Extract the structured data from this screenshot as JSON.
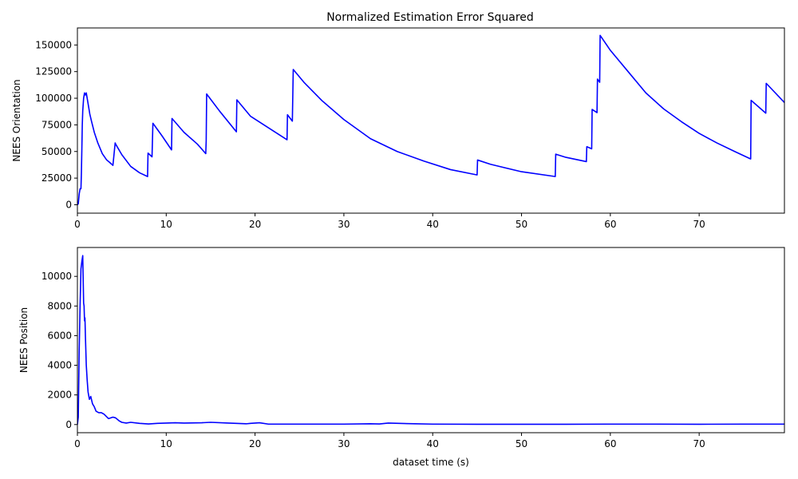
{
  "chart_data": [
    {
      "type": "line",
      "title": "Normalized Estimation Error Squared",
      "xlabel": "",
      "ylabel": "NEES Orientation",
      "xlim": [
        0,
        79.6
      ],
      "ylim": [
        -7900,
        166000
      ],
      "xticks": [
        0,
        10,
        20,
        30,
        40,
        50,
        60,
        70
      ],
      "yticks": [
        0,
        25000,
        50000,
        75000,
        100000,
        125000,
        150000
      ],
      "ytick_labels": [
        "0",
        "25000",
        "50000",
        "75000",
        "100000",
        "125000",
        "150000"
      ],
      "grid": false,
      "line_color": "#0000ff",
      "series": [
        {
          "x": [
            0,
            0.1,
            0.2,
            0.3,
            0.4,
            0.45,
            0.5,
            0.55,
            0.6,
            0.7,
            0.8,
            0.9,
            1.0,
            1.1,
            1.2,
            1.3,
            1.4,
            1.6,
            1.9,
            2.3,
            2.8,
            3.3,
            3.6,
            4.0,
            4.25,
            4.3,
            5.0,
            6.0,
            7.0,
            7.9,
            7.95,
            8.4,
            8.5,
            9.5,
            10.6,
            10.65,
            12.0,
            13.5,
            14.45,
            14.5,
            14.55,
            16.0,
            17.9,
            17.95,
            19.5,
            21.0,
            23.6,
            23.65,
            24.2,
            24.3,
            25.5,
            27.5,
            30.0,
            33.0,
            36.0,
            39.0,
            42.0,
            45.0,
            45.05,
            46.5,
            50.0,
            53.8,
            53.85,
            55.0,
            57.3,
            57.35,
            57.9,
            57.95,
            58.5,
            58.55,
            58.8,
            58.85,
            60.0,
            62.0,
            64.0,
            66.0,
            68.0,
            70.0,
            72.0,
            74.0,
            75.8,
            75.85,
            77.5,
            77.55,
            79.6
          ],
          "values": [
            0,
            1000,
            10000,
            15000,
            15000,
            30000,
            52000,
            75000,
            88000,
            100000,
            105000,
            103000,
            105000,
            100000,
            95000,
            90000,
            85000,
            78000,
            68000,
            58000,
            48000,
            42000,
            40000,
            37000,
            58000,
            57000,
            47000,
            36000,
            30000,
            26500,
            48500,
            45000,
            76500,
            65000,
            51500,
            81000,
            68000,
            57000,
            48000,
            60000,
            104000,
            88000,
            68500,
            98500,
            83000,
            75000,
            61000,
            84500,
            78500,
            127000,
            115000,
            98000,
            80000,
            62000,
            50000,
            41000,
            33000,
            28000,
            42000,
            38000,
            31000,
            26500,
            47500,
            44500,
            40500,
            54500,
            52500,
            89500,
            86500,
            118000,
            115000,
            159000,
            145000,
            125000,
            105000,
            90000,
            78000,
            67000,
            58000,
            50000,
            43000,
            98000,
            86000,
            114000,
            96000
          ]
        }
      ]
    },
    {
      "type": "line",
      "title": "",
      "xlabel": "dataset time (s)",
      "ylabel": "NEES Position",
      "xlim": [
        0,
        79.6
      ],
      "ylim": [
        -550,
        11950
      ],
      "xticks": [
        0,
        10,
        20,
        30,
        40,
        50,
        60,
        70
      ],
      "yticks": [
        0,
        2000,
        4000,
        6000,
        8000,
        10000
      ],
      "ytick_labels": [
        "0",
        "2000",
        "4000",
        "6000",
        "8000",
        "10000"
      ],
      "grid": false,
      "line_color": "#0000ff",
      "series": [
        {
          "x": [
            0,
            0.1,
            0.2,
            0.3,
            0.4,
            0.5,
            0.6,
            0.7,
            0.75,
            0.8,
            0.85,
            0.9,
            0.95,
            1.0,
            1.1,
            1.2,
            1.35,
            1.5,
            1.7,
            1.9,
            2.1,
            2.4,
            2.7,
            3.0,
            3.5,
            4.0,
            4.3,
            4.7,
            5.0,
            5.5,
            6.0,
            7.0,
            8.0,
            9.0,
            10.0,
            11.0,
            12.0,
            14.0,
            15.0,
            17.0,
            19.0,
            19.5,
            20.5,
            21.5,
            25.0,
            30.0,
            33.0,
            34.0,
            35.0,
            38.0,
            40.0,
            45.0,
            50.0,
            55.0,
            60.0,
            65.0,
            70.0,
            75.0,
            79.6
          ],
          "values": [
            0,
            500,
            5000,
            8000,
            10500,
            11000,
            11400,
            8200,
            8000,
            7000,
            7200,
            6000,
            5000,
            4000,
            3000,
            2200,
            1700,
            1900,
            1400,
            1200,
            900,
            800,
            800,
            700,
            400,
            500,
            450,
            250,
            150,
            100,
            150,
            80,
            40,
            80,
            100,
            120,
            100,
            120,
            150,
            100,
            50,
            80,
            120,
            30,
            30,
            30,
            50,
            40,
            100,
            50,
            30,
            20,
            20,
            20,
            30,
            30,
            20,
            30,
            30
          ]
        }
      ]
    }
  ]
}
